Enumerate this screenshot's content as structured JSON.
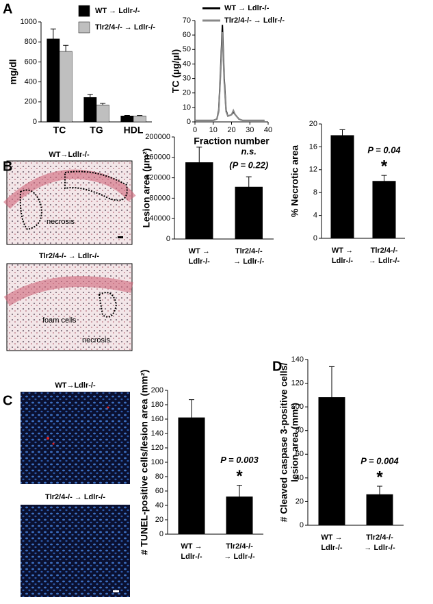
{
  "figure": {
    "panels": [
      "A",
      "B",
      "C",
      "D"
    ],
    "images": [
      {
        "caption": "WT→Ldlr-/-",
        "labels": [
          "necrosis"
        ]
      },
      {
        "caption": "Tlr2/4-/- → Ldlr-/-",
        "labels": [
          "foam cells",
          "necrosis"
        ]
      },
      {
        "caption": "WT→Ldlr-/-"
      },
      {
        "caption": "Tlr2/4-/- → Ldlr-/-"
      }
    ]
  },
  "chart_data": [
    {
      "type": "bar",
      "ylabel": "mg/dl",
      "categories": [
        "TC",
        "TG",
        "HDL"
      ],
      "series": [
        {
          "name": "WT → Ldlr-/-",
          "color": "#000000",
          "values": [
            830,
            245,
            60
          ],
          "errors": [
            100,
            30,
            5
          ]
        },
        {
          "name": "Tlr2/4-/- → Ldlr-/-",
          "color": "#bfbfbf",
          "values": [
            705,
            170,
            60
          ],
          "errors": [
            60,
            15,
            4
          ]
        }
      ],
      "ylim": [
        0,
        1000
      ],
      "yticks": [
        0,
        200,
        400,
        600,
        800,
        1000
      ]
    },
    {
      "type": "line",
      "ylabel": "TC (µg/µl)",
      "xlabel": "Fraction number",
      "x": [
        0,
        2,
        4,
        6,
        8,
        10,
        12,
        13,
        14,
        15,
        16,
        17,
        18,
        20,
        21,
        22,
        24,
        26,
        28,
        30,
        32,
        34,
        36,
        38
      ],
      "series": [
        {
          "name": "WT → Ldlr-/-",
          "color": "#000000",
          "values": [
            1,
            1,
            1,
            1,
            1,
            1,
            2,
            8,
            35,
            67,
            30,
            8,
            4,
            5,
            7,
            5,
            2,
            1,
            1,
            1,
            1,
            1,
            1,
            1
          ]
        },
        {
          "name": "Tlr2/4-/- → Ldlr-/-",
          "color": "#888888",
          "values": [
            1,
            1,
            1,
            1,
            1,
            1,
            2,
            7,
            32,
            62,
            27,
            7,
            4,
            5,
            8,
            5,
            2,
            1,
            1,
            1,
            1,
            1,
            1,
            1
          ]
        }
      ],
      "xlim": [
        0,
        40
      ],
      "xticks": [
        0,
        10,
        20,
        30,
        40
      ],
      "ylim": [
        0,
        70
      ],
      "yticks": [
        0,
        10,
        20,
        30,
        40,
        50,
        60,
        70
      ]
    },
    {
      "type": "bar",
      "ylabel": [
        "Lesion area (µm²)"
      ],
      "categories": [
        [
          "WT →",
          "Ldlr-/-"
        ],
        [
          "Tlr2/4-/-",
          "→ Ldlr-/-"
        ]
      ],
      "values": [
        150000,
        102000
      ],
      "errors": [
        30000,
        20000
      ],
      "color": "#000000",
      "annotations": [
        "n.s.",
        "(P = 0.22)"
      ],
      "ylim": [
        0,
        200000
      ],
      "yticks": [
        0,
        40000,
        80000,
        120000,
        160000,
        200000
      ]
    },
    {
      "type": "bar",
      "ylabel": [
        "% Necrotic area"
      ],
      "categories": [
        [
          "WT →",
          "Ldlr-/-"
        ],
        [
          "Tlr2/4-/-",
          "→ Ldlr-/-"
        ]
      ],
      "values": [
        18,
        10
      ],
      "errors": [
        1,
        1
      ],
      "color": "#000000",
      "annotations": [
        "P = 0.04",
        "*"
      ],
      "ylim": [
        0,
        20
      ],
      "yticks": [
        0,
        4,
        8,
        12,
        16,
        20
      ]
    },
    {
      "type": "bar",
      "ylabel": [
        "# TUNEL-positive cells/lesion area (mm²)"
      ],
      "categories": [
        [
          "WT →",
          "Ldlr-/-"
        ],
        [
          "Tlr2/4-/-",
          "→ Ldlr-/-"
        ]
      ],
      "values": [
        162,
        52
      ],
      "errors": [
        25,
        16
      ],
      "color": "#000000",
      "annotations": [
        "P = 0.003",
        "*"
      ],
      "ylim": [
        0,
        200
      ],
      "yticks": [
        0,
        20,
        40,
        60,
        80,
        100,
        120,
        140,
        160,
        180,
        200
      ]
    },
    {
      "type": "bar",
      "ylabel": [
        "# Cleaved caspase 3-positive cells/",
        "lesion area (mm²)"
      ],
      "categories": [
        [
          "WT →",
          "Ldlr-/-"
        ],
        [
          "Tlr2/4-/-",
          "→ Ldlr-/-"
        ]
      ],
      "values": [
        108,
        26
      ],
      "errors": [
        26,
        7
      ],
      "color": "#000000",
      "annotations": [
        "P = 0.004",
        "*"
      ],
      "ylim": [
        0,
        140
      ],
      "yticks": [
        0,
        20,
        40,
        60,
        80,
        100,
        120,
        140
      ]
    }
  ]
}
